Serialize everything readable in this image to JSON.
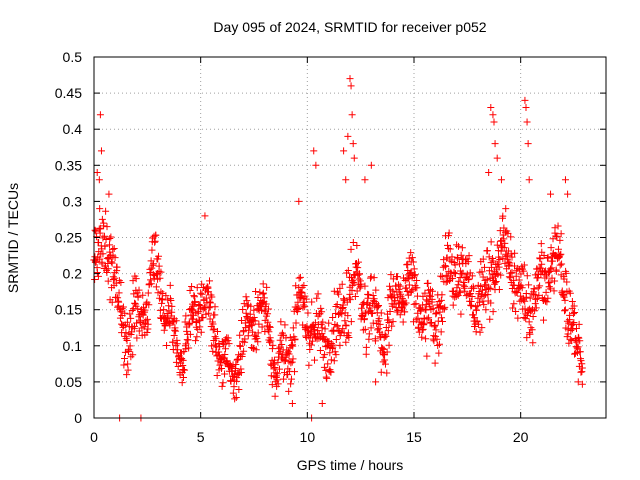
{
  "chart_data": {
    "type": "scatter",
    "title": "Day 095 of 2024, SRMTID for receiver p052",
    "xlabel": "GPS time / hours",
    "ylabel": "SRMTID / TECUs",
    "xlim": [
      0,
      24.0
    ],
    "ylim": [
      0,
      0.5
    ],
    "xticks": [
      0,
      5,
      10,
      15,
      20
    ],
    "xtick_labels": [
      "0",
      "5",
      "10",
      "15",
      "20"
    ],
    "yticks": [
      0,
      0.05,
      0.1,
      0.15,
      0.2,
      0.25,
      0.3,
      0.35,
      0.4,
      0.45,
      0.5
    ],
    "ytick_labels": [
      "0",
      "0.05",
      "0.1",
      "0.15",
      "0.2",
      "0.25",
      "0.3",
      "0.35",
      "0.4",
      "0.45",
      "0.5"
    ],
    "grid": true,
    "marker": "+",
    "color": "#ff0000",
    "data_note": "Approximate reproduction of a dense scatter (~1500 points); envelope sampled below.",
    "series": [
      {
        "name": "SRMTID",
        "envelope": {
          "x": [
            0,
            0.5,
            1,
            1.5,
            2,
            2.5,
            3,
            3.5,
            4,
            4.5,
            5,
            5.5,
            6,
            6.5,
            7,
            7.5,
            8,
            8.5,
            9,
            9.5,
            10,
            10.5,
            11,
            11.5,
            12,
            12.5,
            13,
            13.5,
            14,
            14.5,
            15,
            15.5,
            16,
            16.5,
            17,
            17.5,
            18,
            18.5,
            19,
            19.5,
            20,
            20.5,
            21,
            21.5,
            22,
            22.5,
            22.9
          ],
          "center": [
            0.2,
            0.22,
            0.17,
            0.14,
            0.17,
            0.15,
            0.18,
            0.13,
            0.12,
            0.13,
            0.14,
            0.11,
            0.1,
            0.09,
            0.11,
            0.12,
            0.13,
            0.11,
            0.1,
            0.12,
            0.11,
            0.12,
            0.12,
            0.14,
            0.16,
            0.15,
            0.17,
            0.14,
            0.14,
            0.15,
            0.16,
            0.17,
            0.16,
            0.17,
            0.18,
            0.18,
            0.19,
            0.2,
            0.19,
            0.2,
            0.18,
            0.19,
            0.17,
            0.19,
            0.18,
            0.15,
            0.1
          ],
          "spread": [
            0.07,
            0.07,
            0.06,
            0.05,
            0.06,
            0.05,
            0.06,
            0.05,
            0.05,
            0.05,
            0.06,
            0.05,
            0.05,
            0.04,
            0.05,
            0.05,
            0.05,
            0.05,
            0.05,
            0.06,
            0.05,
            0.05,
            0.06,
            0.07,
            0.07,
            0.06,
            0.06,
            0.06,
            0.05,
            0.05,
            0.05,
            0.06,
            0.06,
            0.06,
            0.06,
            0.05,
            0.06,
            0.07,
            0.06,
            0.06,
            0.06,
            0.06,
            0.06,
            0.06,
            0.06,
            0.06,
            0.03
          ]
        },
        "outliers": [
          {
            "x": 0.05,
            "y": 0.26
          },
          {
            "x": 0.15,
            "y": 0.34
          },
          {
            "x": 0.25,
            "y": 0.33
          },
          {
            "x": 0.3,
            "y": 0.42
          },
          {
            "x": 0.35,
            "y": 0.37
          },
          {
            "x": 0.7,
            "y": 0.31
          },
          {
            "x": 1.2,
            "y": 0.0
          },
          {
            "x": 2.2,
            "y": 0.0
          },
          {
            "x": 5.2,
            "y": 0.28
          },
          {
            "x": 9.3,
            "y": 0.02
          },
          {
            "x": 9.6,
            "y": 0.3
          },
          {
            "x": 10.2,
            "y": 0.0
          },
          {
            "x": 10.3,
            "y": 0.37
          },
          {
            "x": 10.4,
            "y": 0.35
          },
          {
            "x": 10.7,
            "y": 0.02
          },
          {
            "x": 11.7,
            "y": 0.37
          },
          {
            "x": 11.8,
            "y": 0.33
          },
          {
            "x": 11.9,
            "y": 0.39
          },
          {
            "x": 12.0,
            "y": 0.47
          },
          {
            "x": 12.05,
            "y": 0.46
          },
          {
            "x": 12.1,
            "y": 0.42
          },
          {
            "x": 12.15,
            "y": 0.38
          },
          {
            "x": 12.2,
            "y": 0.36
          },
          {
            "x": 12.7,
            "y": 0.33
          },
          {
            "x": 13.0,
            "y": 0.35
          },
          {
            "x": 13.2,
            "y": 0.05
          },
          {
            "x": 18.6,
            "y": 0.43
          },
          {
            "x": 18.7,
            "y": 0.42
          },
          {
            "x": 18.75,
            "y": 0.41
          },
          {
            "x": 18.8,
            "y": 0.38
          },
          {
            "x": 18.9,
            "y": 0.36
          },
          {
            "x": 18.5,
            "y": 0.34
          },
          {
            "x": 19.1,
            "y": 0.33
          },
          {
            "x": 19.3,
            "y": 0.29
          },
          {
            "x": 20.2,
            "y": 0.44
          },
          {
            "x": 20.25,
            "y": 0.43
          },
          {
            "x": 20.3,
            "y": 0.41
          },
          {
            "x": 20.35,
            "y": 0.38
          },
          {
            "x": 20.4,
            "y": 0.33
          },
          {
            "x": 21.4,
            "y": 0.31
          },
          {
            "x": 22.1,
            "y": 0.33
          },
          {
            "x": 22.2,
            "y": 0.31
          },
          {
            "x": 22.7,
            "y": 0.05
          }
        ]
      }
    ]
  }
}
